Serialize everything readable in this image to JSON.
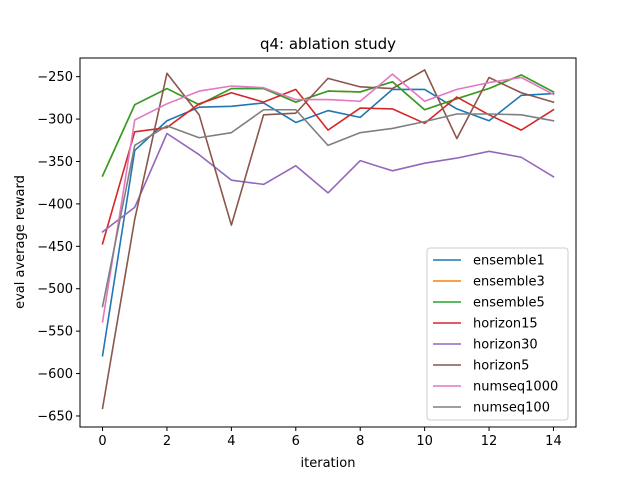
{
  "chart_data": {
    "type": "line",
    "title": "q4: ablation study",
    "xlabel": "iteration",
    "ylabel": "eval average reward",
    "xlim": [
      -0.7,
      14.7
    ],
    "ylim": [
      -663,
      -228
    ],
    "xticks": [
      0,
      2,
      4,
      6,
      8,
      10,
      12,
      14
    ],
    "yticks": [
      -650,
      -600,
      -550,
      -500,
      -450,
      -400,
      -350,
      -300,
      -250
    ],
    "x": [
      0,
      1,
      2,
      3,
      4,
      5,
      6,
      7,
      8,
      9,
      10,
      11,
      12,
      13,
      14
    ],
    "legend_position": "lower right",
    "grid": false,
    "series": [
      {
        "name": "ensemble1",
        "color": "#1f77b4",
        "values": [
          -579,
          -337,
          -302,
          -286,
          -285,
          -281,
          -304,
          -290,
          -298,
          -265,
          -265,
          -288,
          -302,
          -272,
          -270
        ]
      },
      {
        "name": "ensemble3",
        "color": "#ff7f0e",
        "values": [
          -367,
          -283,
          -264,
          -283,
          -264,
          -264,
          -280,
          -267,
          -268,
          -256,
          -289,
          -276,
          -264,
          -248,
          -268
        ]
      },
      {
        "name": "ensemble5",
        "color": "#2ca02c",
        "values": [
          -367,
          -283,
          -264,
          -283,
          -264,
          -264,
          -280,
          -267,
          -268,
          -256,
          -289,
          -276,
          -264,
          -248,
          -268
        ]
      },
      {
        "name": "horizon15",
        "color": "#d62728",
        "values": [
          -447,
          -315,
          -310,
          -282,
          -269,
          -280,
          -265,
          -313,
          -287,
          -288,
          -305,
          -274,
          -295,
          -313,
          -289
        ]
      },
      {
        "name": "horizon30",
        "color": "#9467bd",
        "values": [
          -433,
          -404,
          -317,
          -342,
          -372,
          -377,
          -355,
          -387,
          -349,
          -361,
          -352,
          -346,
          -338,
          -345,
          -368
        ]
      },
      {
        "name": "horizon5",
        "color": "#8c564b",
        "values": [
          -641,
          -418,
          -246,
          -295,
          -425,
          -295,
          -293,
          -252,
          -262,
          -264,
          -242,
          -323,
          -251,
          -269,
          -280
        ]
      },
      {
        "name": "numseq1000",
        "color": "#e377c2",
        "values": [
          -539,
          -301,
          -282,
          -267,
          -261,
          -263,
          -277,
          -277,
          -279,
          -247,
          -279,
          -265,
          -257,
          -251,
          -271
        ]
      },
      {
        "name": "numseq100",
        "color": "#7f7f7f",
        "values": [
          -521,
          -331,
          -308,
          -322,
          -316,
          -289,
          -289,
          -331,
          -316,
          -311,
          -303,
          -294,
          -294,
          -295,
          -302
        ]
      }
    ]
  }
}
